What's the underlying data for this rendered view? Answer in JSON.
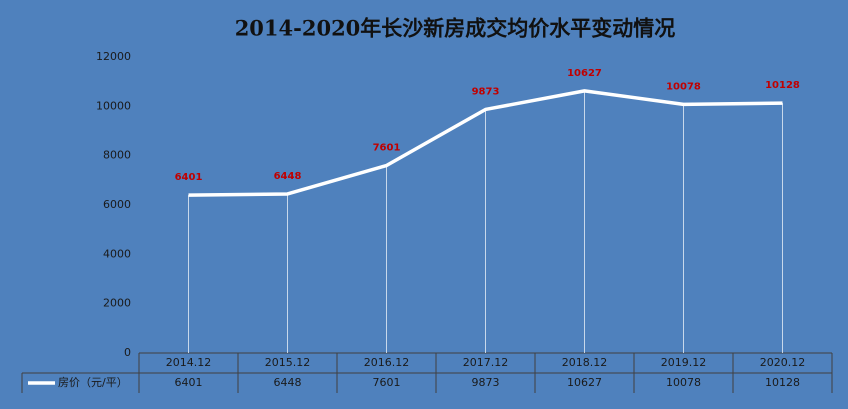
{
  "chart_data": {
    "type": "line",
    "title": "2014-2020年长沙新房成交均价水平变动情况",
    "categories": [
      "2014.12",
      "2015.12",
      "2016.12",
      "2017.12",
      "2018.12",
      "2019.12",
      "2020.12"
    ],
    "series": [
      {
        "name": "房价（元/平）",
        "color": "#ffffff",
        "values": [
          6401,
          6448,
          7601,
          9873,
          10627,
          10078,
          10128
        ]
      }
    ],
    "value_label_color": "#c00000",
    "ylim": [
      0,
      12000
    ],
    "yticks": [
      0,
      2000,
      4000,
      6000,
      8000,
      10000,
      12000
    ],
    "grid": false,
    "data_table": true
  }
}
